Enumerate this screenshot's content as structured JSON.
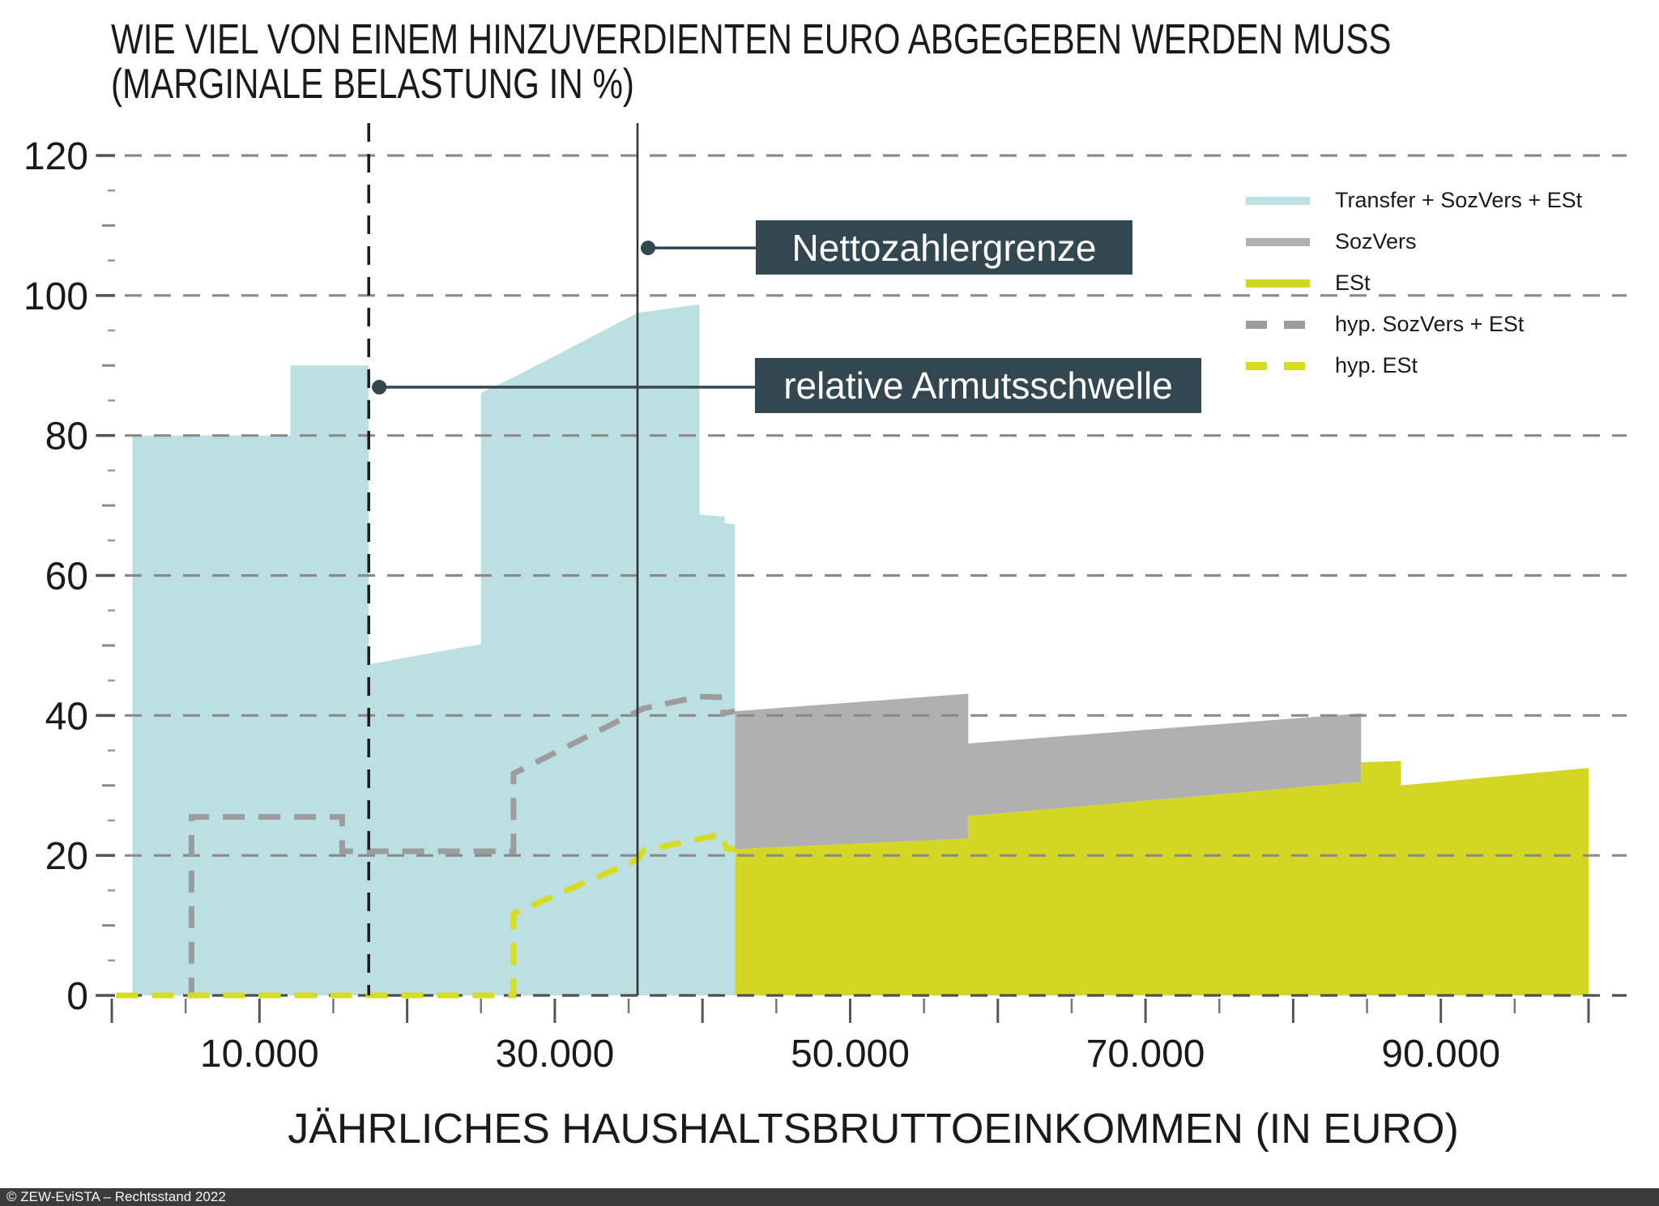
{
  "title": {
    "line1": "WIE VIEL VON EINEM HINZUVERDIENTEN EURO ABGEGEBEN WERDEN MUSS",
    "line2": "(MARGINALE BELASTUNG IN %)"
  },
  "footer": "© ZEW-EviSTA – Rechtsstand 2022",
  "colors": {
    "transfer_area": "#bcdfe2",
    "sozvers_area": "#b0b0b0",
    "est_area": "#d3d724",
    "hyp_sozvers_line": "#9c9c9c",
    "hyp_est_line": "#d7dc1e",
    "gridline": "#8a8a8a",
    "zero_gridline": "#4f4f4f",
    "annotation_dark": "#334750",
    "vertical_dashed": "#1a1a1a",
    "vertical_solid": "#333333",
    "text": "#1a1a1a",
    "footer_bg": "#3b3b3b"
  },
  "x_axis": {
    "title": "JÄHRLICHES HAUSHALTSBRUTTOEINKOMMEN (IN EURO)",
    "range": [
      0,
      100000
    ],
    "major_tick_step": 10000,
    "minor_tick_step": 5000,
    "labeled_ticks": [
      {
        "value": 10000,
        "label": "10.000"
      },
      {
        "value": 30000,
        "label": "30.000"
      },
      {
        "value": 50000,
        "label": "50.000"
      },
      {
        "value": 70000,
        "label": "70.000"
      },
      {
        "value": 90000,
        "label": "90.000"
      }
    ]
  },
  "y_axis": {
    "range": [
      0,
      120
    ],
    "major_step": 20,
    "minor_step": 5,
    "tick_labels": [
      "0",
      "20",
      "40",
      "60",
      "80",
      "100",
      "120"
    ],
    "grid": "dashed"
  },
  "legend": {
    "position": "top-right",
    "items": [
      {
        "id": "transfer",
        "label": "Transfer + SozVers + ESt",
        "color": "#bcdfe2",
        "style": "solid"
      },
      {
        "id": "sozvers",
        "label": "SozVers",
        "color": "#b0b0b0",
        "style": "solid"
      },
      {
        "id": "est",
        "label": "ESt",
        "color": "#d3d724",
        "style": "solid"
      },
      {
        "id": "hyp-sozvers-est",
        "label": "hyp. SozVers + ESt",
        "color": "#9c9c9c",
        "style": "dashed"
      },
      {
        "id": "hyp-est",
        "label": "hyp. ESt",
        "color": "#d7dc1e",
        "style": "dashed"
      }
    ]
  },
  "annotations": {
    "netto": {
      "label": "Nettozahlergrenze",
      "x_value": 35600,
      "line_style": "solid",
      "leader_percent": 106.8
    },
    "armut": {
      "label": "relative Armutsschwelle",
      "x_value": 17400,
      "line_style": "dashed",
      "leader_percent": 86.9
    }
  },
  "chart_data": {
    "type": "area",
    "xlabel": "JÄHRLICHES HAUSHALTSBRUTTOEINKOMMEN (IN EURO)",
    "ylabel": "MARGINALE BELASTUNG IN %",
    "xlim": [
      0,
      100000
    ],
    "ylim": [
      0,
      120
    ],
    "series": [
      {
        "id": "transfer-sozvers-est",
        "label": "Transfer + SozVers + ESt",
        "type": "area",
        "color": "#bcdfe2",
        "points": [
          [
            1400,
            0
          ],
          [
            1400,
            80
          ],
          [
            12100,
            80
          ],
          [
            12100,
            90
          ],
          [
            17400,
            90
          ],
          [
            17400,
            47.3
          ],
          [
            25000,
            50.2
          ],
          [
            25000,
            86.1
          ],
          [
            27200,
            88.3
          ],
          [
            35600,
            97.5
          ],
          [
            39300,
            98.6
          ],
          [
            39800,
            98.7
          ],
          [
            39800,
            68.7
          ],
          [
            41500,
            68.4
          ],
          [
            41500,
            67.5
          ],
          [
            42200,
            67.3
          ],
          [
            42200,
            0
          ]
        ]
      },
      {
        "id": "sozvers",
        "label": "SozVers",
        "type": "area",
        "color": "#b0b0b0",
        "points": [
          [
            42200,
            40.6
          ],
          [
            58000,
            43.1
          ],
          [
            58000,
            36.0
          ],
          [
            84600,
            40.3
          ],
          [
            84600,
            30.5
          ],
          [
            58000,
            25.6
          ],
          [
            58000,
            22.4
          ],
          [
            42200,
            20.9
          ]
        ]
      },
      {
        "id": "est",
        "label": "ESt",
        "type": "area",
        "color": "#d3d724",
        "points": [
          [
            42200,
            0
          ],
          [
            42200,
            20.9
          ],
          [
            58000,
            22.4
          ],
          [
            58000,
            25.6
          ],
          [
            84600,
            30.5
          ],
          [
            84600,
            33.3
          ],
          [
            87300,
            33.5
          ],
          [
            87300,
            30.0
          ],
          [
            100000,
            32.5
          ],
          [
            100000,
            0
          ]
        ]
      },
      {
        "id": "hyp-sozvers-est",
        "label": "hyp. SozVers + ESt",
        "type": "line",
        "style": "dashed",
        "color": "#9c9c9c",
        "points": [
          [
            300,
            0
          ],
          [
            5400,
            0
          ],
          [
            5400,
            25.5
          ],
          [
            15600,
            25.5
          ],
          [
            15600,
            20.6
          ],
          [
            27200,
            20.6
          ],
          [
            27200,
            31.7
          ],
          [
            36000,
            41.0
          ],
          [
            39800,
            42.7
          ],
          [
            41400,
            42.6
          ],
          [
            41400,
            40.3
          ],
          [
            42200,
            40.6
          ]
        ]
      },
      {
        "id": "hyp-est",
        "label": "hyp. ESt",
        "type": "line",
        "style": "dashed",
        "color": "#d7dc1e",
        "points": [
          [
            300,
            0
          ],
          [
            27200,
            0
          ],
          [
            27200,
            11.7
          ],
          [
            35600,
            19.4
          ],
          [
            36000,
            20.7
          ],
          [
            41300,
            23.0
          ],
          [
            41600,
            21.0
          ],
          [
            42200,
            20.9
          ]
        ]
      }
    ],
    "vertical_markers": [
      {
        "label": "relative Armutsschwelle",
        "x": 17400,
        "style": "dashed"
      },
      {
        "label": "Nettozahlergrenze",
        "x": 35600,
        "style": "solid"
      }
    ]
  }
}
